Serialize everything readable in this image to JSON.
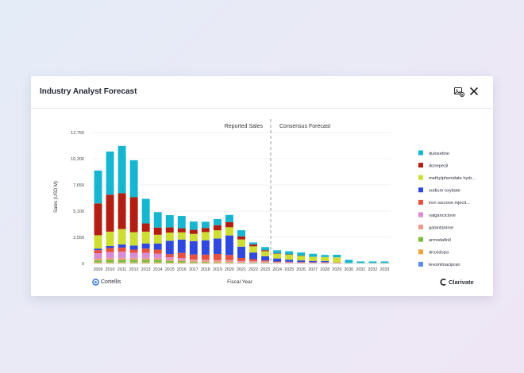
{
  "card": {
    "title": "Industry Analyst Forecast",
    "image_button_icon": "image-download-icon",
    "close_button_icon": "close-icon"
  },
  "branding": {
    "left_logo": "Cortellis",
    "right_logo": "Clarivate"
  },
  "chart_data": {
    "type": "bar",
    "stacked": true,
    "title": "",
    "xlabel": "Fiscal Year",
    "ylabel": "Sales (USD M)",
    "ylim": [
      0,
      12750
    ],
    "yticks": [
      0,
      2550,
      5100,
      7650,
      10200,
      12750
    ],
    "ytick_labels": [
      "0",
      "2,550",
      "5,100",
      "7,650",
      "10,200",
      "12,750"
    ],
    "grid": true,
    "legend_position": "right",
    "annotations": {
      "reported_label": "Reported Sales",
      "forecast_label": "Consensus Forecast",
      "divider_after": "2023"
    },
    "categories": [
      "2009",
      "2010",
      "2011",
      "2012",
      "2013",
      "2014",
      "2015",
      "2016",
      "2017",
      "2018",
      "2019",
      "2020",
      "2021",
      "2022",
      "2023",
      "2024",
      "2025",
      "2026",
      "2027",
      "2028",
      "2029",
      "2030",
      "2031",
      "2032",
      "2033"
    ],
    "series": [
      {
        "name": "levomilnacipran",
        "color": "#5b8def",
        "values": [
          0,
          0,
          0,
          0,
          0,
          0,
          0,
          0,
          0,
          0,
          0,
          0,
          0,
          0,
          0,
          0,
          0,
          0,
          0,
          0,
          0,
          0,
          0,
          0,
          0
        ]
      },
      {
        "name": "droxidopa",
        "color": "#f2a33a",
        "values": [
          100,
          100,
          100,
          100,
          100,
          100,
          80,
          80,
          80,
          80,
          80,
          80,
          60,
          50,
          50,
          40,
          30,
          20,
          10,
          10,
          10,
          0,
          0,
          0,
          0
        ]
      },
      {
        "name": "armodafinil",
        "color": "#7cbf3d",
        "values": [
          200,
          250,
          250,
          250,
          250,
          250,
          180,
          150,
          100,
          80,
          50,
          50,
          30,
          30,
          20,
          20,
          20,
          10,
          10,
          10,
          10,
          0,
          0,
          0,
          0
        ]
      },
      {
        "name": "galantamine",
        "color": "#f09a8a",
        "values": [
          200,
          200,
          200,
          200,
          200,
          200,
          150,
          150,
          150,
          150,
          150,
          150,
          100,
          100,
          100,
          50,
          50,
          50,
          40,
          40,
          30,
          0,
          0,
          0,
          0
        ]
      },
      {
        "name": "valganciclovir",
        "color": "#d98ad6",
        "values": [
          500,
          550,
          600,
          500,
          500,
          400,
          200,
          150,
          50,
          50,
          50,
          50,
          50,
          40,
          30,
          30,
          20,
          20,
          20,
          20,
          10,
          0,
          0,
          0,
          0
        ]
      },
      {
        "name": "iron sucrose injecti...",
        "color": "#e8503c",
        "values": [
          300,
          400,
          400,
          300,
          400,
          400,
          300,
          500,
          500,
          500,
          600,
          500,
          300,
          200,
          100,
          50,
          50,
          50,
          50,
          50,
          40,
          0,
          0,
          0,
          0
        ]
      },
      {
        "name": "sodium oxybate",
        "color": "#2f49e0",
        "values": [
          150,
          200,
          300,
          400,
          500,
          600,
          1300,
          1300,
          1300,
          1400,
          1500,
          1900,
          1100,
          650,
          400,
          300,
          200,
          150,
          120,
          100,
          0,
          0,
          0,
          0,
          0
        ]
      },
      {
        "name": "methylphenidate hydr...",
        "color": "#cddd32",
        "values": [
          1300,
          1400,
          1500,
          1300,
          1150,
          850,
          800,
          700,
          700,
          800,
          800,
          800,
          700,
          600,
          500,
          450,
          500,
          450,
          400,
          400,
          500,
          50,
          50,
          50,
          50
        ]
      },
      {
        "name": "donepezil",
        "color": "#b31e12",
        "values": [
          3100,
          3600,
          3500,
          3400,
          800,
          700,
          500,
          400,
          400,
          400,
          500,
          500,
          300,
          180,
          100,
          50,
          20,
          20,
          0,
          0,
          0,
          0,
          0,
          0,
          0
        ]
      },
      {
        "name": "duloxetine",
        "color": "#16b6d0",
        "values": [
          3200,
          4200,
          4600,
          3600,
          2400,
          1500,
          1200,
          1200,
          800,
          600,
          600,
          700,
          600,
          200,
          300,
          300,
          300,
          300,
          300,
          200,
          250,
          300,
          150,
          150,
          150
        ]
      }
    ]
  }
}
